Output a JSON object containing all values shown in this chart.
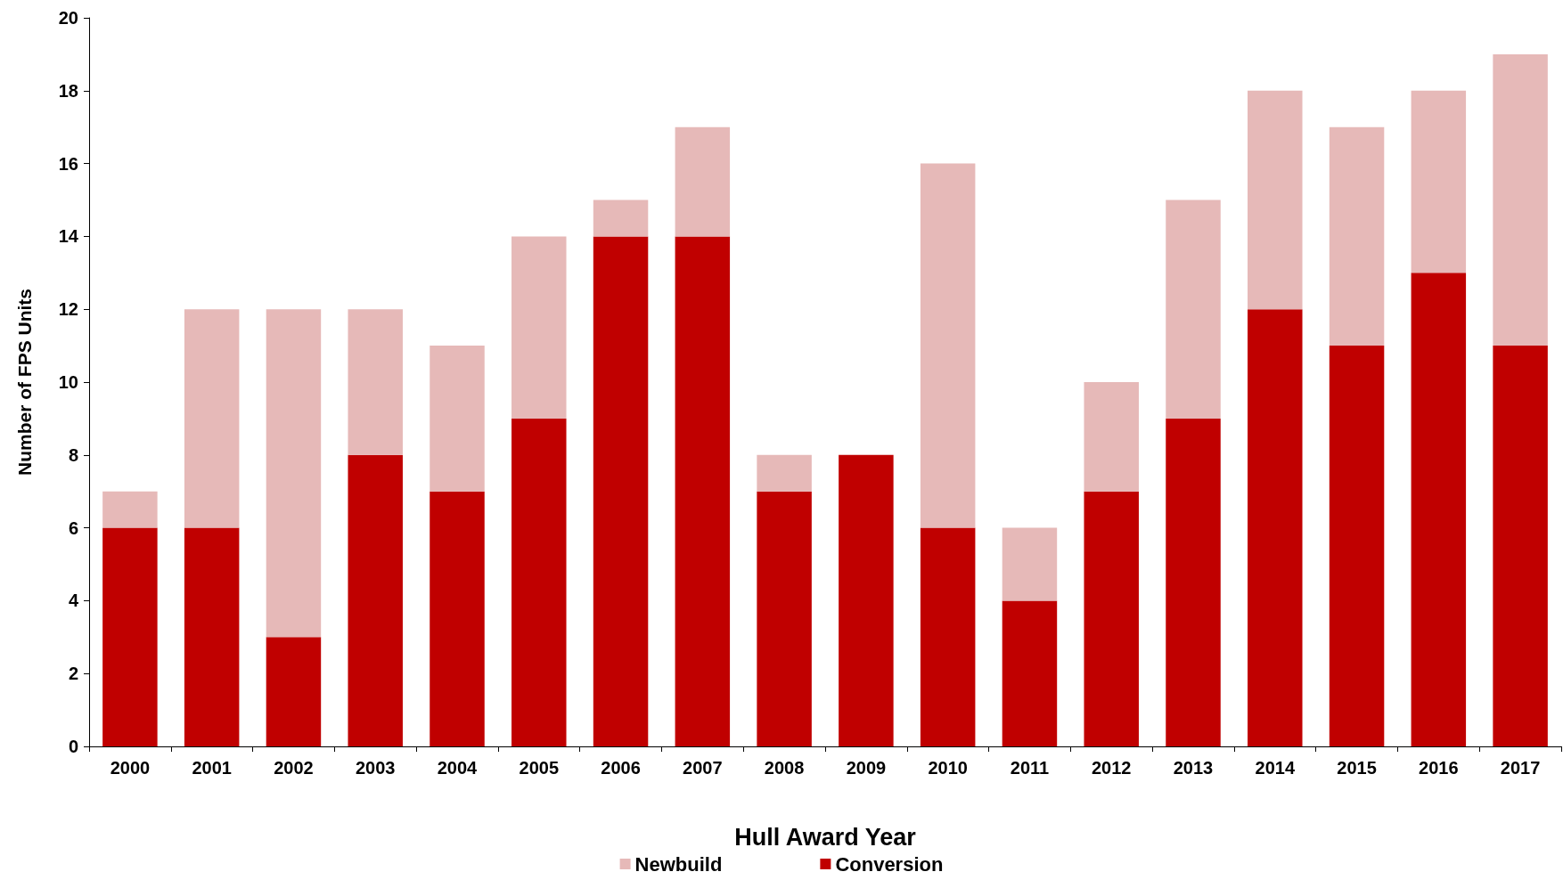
{
  "chart_data": {
    "type": "bar",
    "stacked": true,
    "xlabel": "Hull Award Year",
    "ylabel": "Number of FPS Units",
    "categories": [
      "2000",
      "2001",
      "2002",
      "2003",
      "2004",
      "2005",
      "2006",
      "2007",
      "2008",
      "2009",
      "2010",
      "2011",
      "2012",
      "2013",
      "2014",
      "2015",
      "2016",
      "2017"
    ],
    "series": [
      {
        "name": "Conversion",
        "color": "#c00000",
        "values": [
          6,
          6,
          3,
          8,
          7,
          9,
          14,
          14,
          7,
          8,
          6,
          4,
          7,
          9,
          12,
          11,
          13,
          11
        ]
      },
      {
        "name": "Newbuild",
        "color": "#e6b9b8",
        "values": [
          1,
          6,
          9,
          4,
          4,
          5,
          1,
          3,
          1,
          0,
          10,
          2,
          3,
          6,
          6,
          6,
          5,
          8
        ]
      }
    ],
    "ylim": [
      0,
      20
    ],
    "yticks": [
      0,
      2,
      4,
      6,
      8,
      10,
      12,
      14,
      16,
      18,
      20
    ],
    "grid": false,
    "legend": "bottom"
  }
}
